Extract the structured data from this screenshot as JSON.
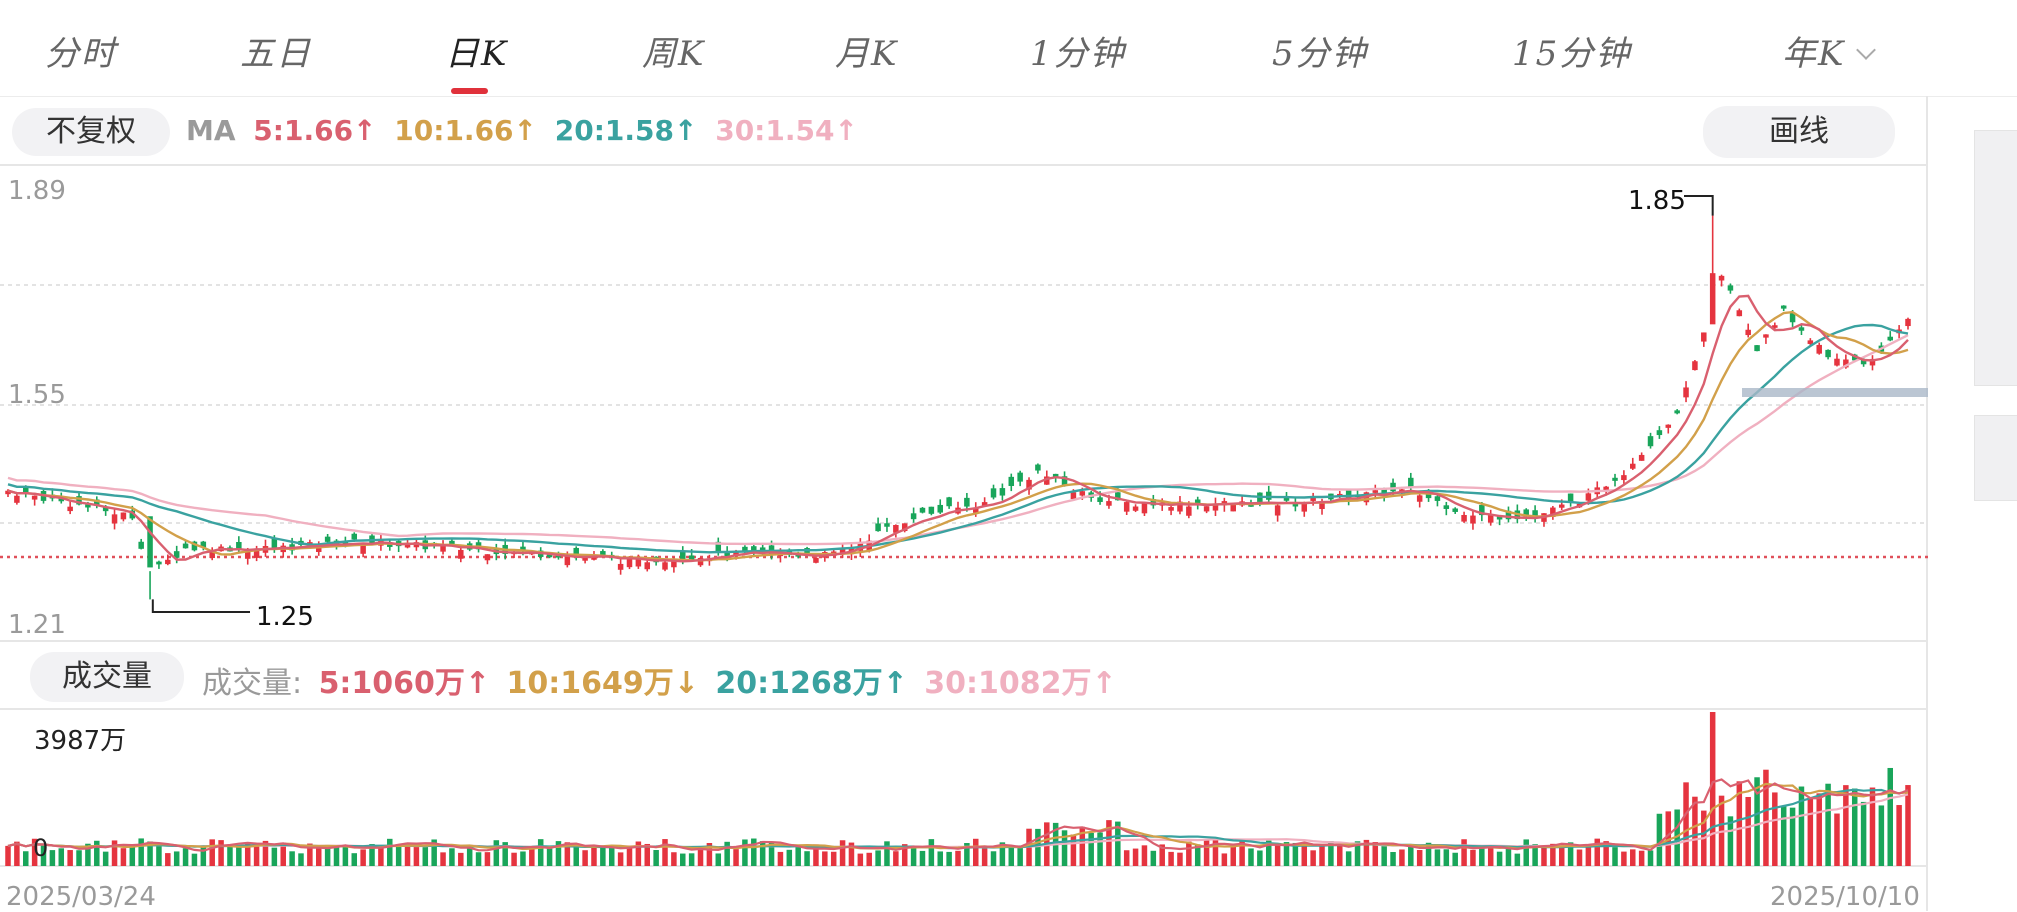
{
  "tabs": [
    "分时",
    "五日",
    "日K",
    "周K",
    "月K",
    "1分钟",
    "5分钟",
    "15分钟",
    "年K"
  ],
  "adjust_label": "不复权",
  "draw_label": "画线",
  "ma": {
    "label": "MA",
    "items": [
      {
        "text": "5:1.66",
        "arrow": "↑",
        "color": "#d9606f"
      },
      {
        "text": "10:1.66",
        "arrow": "↑",
        "color": "#d2a04a"
      },
      {
        "text": "20:1.58",
        "arrow": "↑",
        "color": "#3aa2a0"
      },
      {
        "text": "30:1.54",
        "arrow": "↑",
        "color": "#f0b0c0"
      }
    ]
  },
  "volume": {
    "pill": "成交量",
    "label": "成交量:",
    "items": [
      {
        "text": "5:1060万",
        "arrow": "↑",
        "color": "#d9606f"
      },
      {
        "text": "10:1649万",
        "arrow": "↓",
        "color": "#d2a04a"
      },
      {
        "text": "20:1268万",
        "arrow": "↑",
        "color": "#3aa2a0"
      },
      {
        "text": "30:1082万",
        "arrow": "↑",
        "color": "#f0b0c0"
      }
    ]
  },
  "colors": {
    "up": "#e5343f",
    "down": "#19a55a",
    "ma5": "#d9606f",
    "ma10": "#d2a04a",
    "ma20": "#3aa2a0",
    "ma30": "#f0b0c0"
  },
  "chart_data": {
    "type": "candlestick",
    "y_ticks": [
      "1.89",
      "1.55",
      "1.21"
    ],
    "ylim": [
      1.21,
      1.89
    ],
    "x_start": "2025/03/24",
    "x_end": "2025/10/10",
    "high_label": "1.85",
    "low_label": "1.25",
    "volume_max_label": "3987万",
    "volume_zero_label": "0",
    "keypoints": [
      [
        0,
        1.42
      ],
      [
        14,
        1.38
      ],
      [
        16,
        1.29
      ],
      [
        20,
        1.33
      ],
      [
        30,
        1.33
      ],
      [
        40,
        1.34
      ],
      [
        50,
        1.33
      ],
      [
        62,
        1.32
      ],
      [
        70,
        1.31
      ],
      [
        80,
        1.32
      ],
      [
        93,
        1.32
      ],
      [
        102,
        1.38
      ],
      [
        110,
        1.4
      ],
      [
        116,
        1.45
      ],
      [
        120,
        1.42
      ],
      [
        125,
        1.4
      ],
      [
        135,
        1.4
      ],
      [
        145,
        1.4
      ],
      [
        150,
        1.41
      ],
      [
        158,
        1.42
      ],
      [
        165,
        1.38
      ],
      [
        172,
        1.38
      ],
      [
        178,
        1.41
      ],
      [
        182,
        1.45
      ],
      [
        188,
        1.54
      ],
      [
        193,
        1.76
      ],
      [
        197,
        1.64
      ],
      [
        200,
        1.7
      ],
      [
        205,
        1.63
      ],
      [
        210,
        1.62
      ],
      [
        214,
        1.69
      ]
    ],
    "high_point": [
      192,
      1.85
    ],
    "low_point": [
      16,
      1.25
    ],
    "n": 215
  }
}
